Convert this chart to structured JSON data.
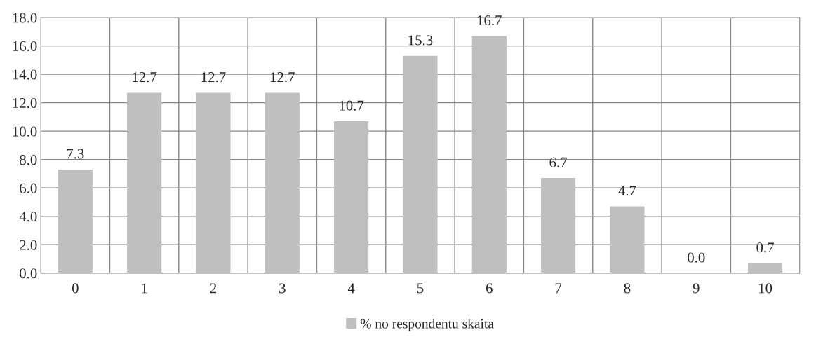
{
  "chart_data": {
    "type": "bar",
    "categories": [
      "0",
      "1",
      "2",
      "3",
      "4",
      "5",
      "6",
      "7",
      "8",
      "9",
      "10"
    ],
    "series": [
      {
        "name": "% no respondentu skaita",
        "color": "#bfbfbf",
        "values": [
          7.3,
          12.7,
          12.7,
          12.7,
          10.7,
          15.3,
          16.7,
          6.7,
          4.7,
          0.0,
          0.7
        ],
        "value_labels": [
          "7.3",
          "12.7",
          "12.7",
          "12.7",
          "10.7",
          "15.3",
          "16.7",
          "6.7",
          "4.7",
          "0.0",
          "0.7"
        ]
      }
    ],
    "ylim": [
      0,
      18
    ],
    "yticks": [
      {
        "value": 0,
        "label": "0.0"
      },
      {
        "value": 2,
        "label": "2.0"
      },
      {
        "value": 4,
        "label": "4.0"
      },
      {
        "value": 6,
        "label": "6.0"
      },
      {
        "value": 8,
        "label": "8.0"
      },
      {
        "value": 10,
        "label": "10.0"
      },
      {
        "value": 12,
        "label": "12.0"
      },
      {
        "value": 14,
        "label": "14.0"
      },
      {
        "value": 16,
        "label": "16.0"
      },
      {
        "value": 18,
        "label": "18.0"
      }
    ],
    "grid": true,
    "legend": "bottom"
  }
}
